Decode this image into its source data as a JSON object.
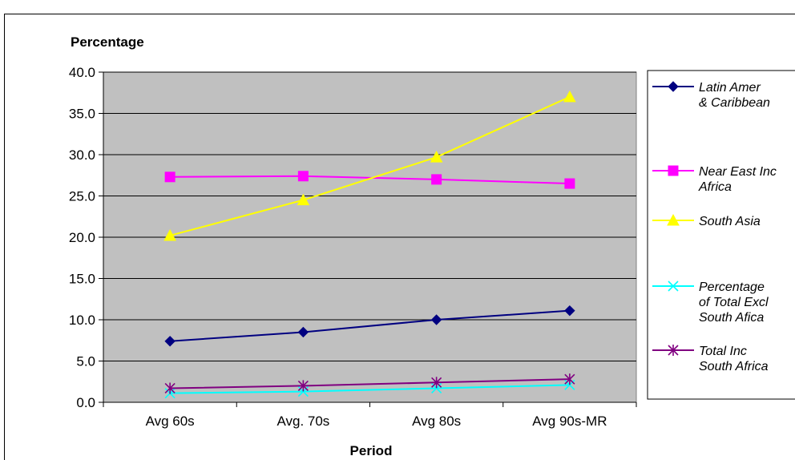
{
  "chart_data": {
    "type": "line",
    "title": "",
    "ylabel": "Percentage",
    "xlabel": "Period",
    "categories": [
      "Avg 60s",
      "Avg. 70s",
      "Avg 80s",
      "Avg 90s-MR"
    ],
    "ylim": [
      0,
      40
    ],
    "yticks": [
      "0.0",
      "5.0",
      "10.0",
      "15.0",
      "20.0",
      "25.0",
      "30.0",
      "35.0",
      "40.0"
    ],
    "grid": true,
    "plot_background": "#c0c0c0",
    "legend_position": "right",
    "series": [
      {
        "name_lines": [
          "Latin Amer",
          "& Caribbean"
        ],
        "color": "#000080",
        "marker": "diamond",
        "values": [
          7.4,
          8.5,
          10.0,
          11.1
        ]
      },
      {
        "name_lines": [
          "Near East Inc",
          "Africa"
        ],
        "color": "#ff00ff",
        "marker": "square",
        "values": [
          27.3,
          27.4,
          27.0,
          26.5
        ]
      },
      {
        "name_lines": [
          "South Asia"
        ],
        "color": "#ffff00",
        "marker": "triangle",
        "values": [
          20.2,
          24.5,
          29.7,
          37.0
        ]
      },
      {
        "name_lines": [
          "Percentage",
          "of Total Excl",
          "South Afica"
        ],
        "color": "#00ffff",
        "marker": "x",
        "values": [
          1.1,
          1.3,
          1.7,
          2.1
        ]
      },
      {
        "name_lines": [
          "Total Inc",
          "South Africa"
        ],
        "color": "#800080",
        "marker": "star",
        "values": [
          1.7,
          2.0,
          2.4,
          2.8
        ]
      }
    ]
  }
}
